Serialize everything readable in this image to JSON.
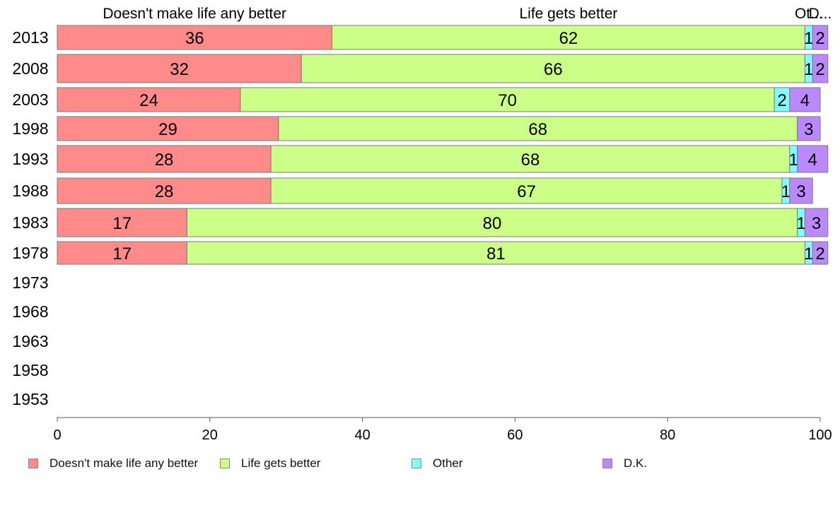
{
  "chart_data": {
    "type": "bar",
    "orientation": "horizontal",
    "stacked": true,
    "categories": [
      "2013",
      "2008",
      "2003",
      "1998",
      "1993",
      "1988",
      "1983",
      "1978",
      "1973",
      "1968",
      "1963",
      "1958",
      "1953"
    ],
    "series": [
      {
        "name": "Doesn't make life any better",
        "color": "#ff8a8a",
        "values": [
          36,
          32,
          24,
          29,
          28,
          28,
          17,
          17,
          null,
          null,
          null,
          null,
          null
        ]
      },
      {
        "name": "Life gets better",
        "color": "#ccff88",
        "values": [
          62,
          66,
          70,
          68,
          68,
          67,
          80,
          81,
          null,
          null,
          null,
          null,
          null
        ]
      },
      {
        "name": "Other",
        "color": "#80ffff",
        "values": [
          1,
          1,
          2,
          0,
          1,
          1,
          1,
          1,
          null,
          null,
          null,
          null,
          null
        ]
      },
      {
        "name": "D.K.",
        "color": "#bb88ff",
        "values": [
          2,
          2,
          4,
          3,
          4,
          3,
          3,
          2,
          null,
          null,
          null,
          null,
          null
        ]
      }
    ],
    "top_labels": [
      "Doesn't make life any better",
      "Life gets better",
      "Ot...",
      "D..."
    ],
    "xlim": [
      0,
      100
    ],
    "xticks": [
      0,
      20,
      40,
      60,
      80,
      100
    ],
    "grid": false,
    "legend_position": "bottom"
  }
}
